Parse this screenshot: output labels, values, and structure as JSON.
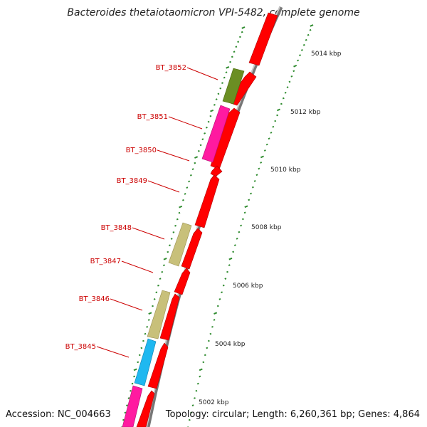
{
  "header": {
    "title": "Bacteroides thetaiotaomicron VPI-5482, complete genome"
  },
  "footer": {
    "accession": "Accession: NC_004663",
    "topology": "Topology: circular; Length: 6,260,361 bp; Genes: 4,864"
  },
  "ticks": [
    "5014 kbp",
    "5012 kbp",
    "5010 kbp",
    "5008 kbp",
    "5006 kbp",
    "5004 kbp",
    "5002 kbp"
  ],
  "gene_labels": [
    "BT_3852",
    "BT_3851",
    "BT_3850",
    "BT_3849",
    "BT_3848",
    "BT_3847",
    "BT_3846",
    "BT_3845"
  ],
  "colors": {
    "forward_cds": "#ff0000",
    "olive": "#6b8e23",
    "magenta": "#ff1493",
    "khaki": "#c8c07a",
    "cyan": "#1fb8f0",
    "backbone": "#888888",
    "ticks": "#2e8b2e",
    "label": "#cc0000"
  }
}
